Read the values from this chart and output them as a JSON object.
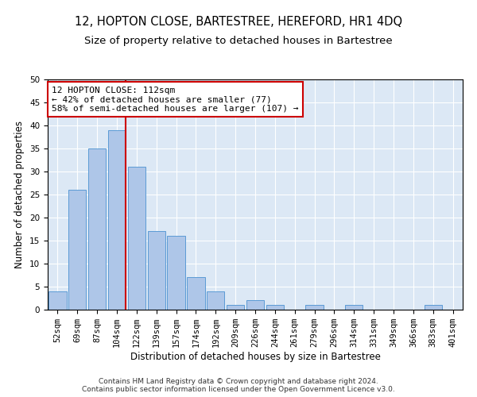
{
  "title": "12, HOPTON CLOSE, BARTESTREE, HEREFORD, HR1 4DQ",
  "subtitle": "Size of property relative to detached houses in Bartestree",
  "xlabel": "Distribution of detached houses by size in Bartestree",
  "ylabel": "Number of detached properties",
  "bar_labels": [
    "52sqm",
    "69sqm",
    "87sqm",
    "104sqm",
    "122sqm",
    "139sqm",
    "157sqm",
    "174sqm",
    "192sqm",
    "209sqm",
    "226sqm",
    "244sqm",
    "261sqm",
    "279sqm",
    "296sqm",
    "314sqm",
    "331sqm",
    "349sqm",
    "366sqm",
    "383sqm",
    "401sqm"
  ],
  "bar_values": [
    4,
    26,
    35,
    39,
    31,
    17,
    16,
    7,
    4,
    1,
    2,
    1,
    0,
    1,
    0,
    1,
    0,
    0,
    0,
    1,
    0
  ],
  "bar_color": "#aec6e8",
  "bar_edge_color": "#5b9bd5",
  "highlight_index": 3,
  "highlight_color": "#cc0000",
  "annotation_text": "12 HOPTON CLOSE: 112sqm\n← 42% of detached houses are smaller (77)\n58% of semi-detached houses are larger (107) →",
  "annotation_box_color": "#ffffff",
  "annotation_box_edge_color": "#cc0000",
  "ylim": [
    0,
    50
  ],
  "yticks": [
    0,
    5,
    10,
    15,
    20,
    25,
    30,
    35,
    40,
    45,
    50
  ],
  "background_color": "#dce8f5",
  "footer_line1": "Contains HM Land Registry data © Crown copyright and database right 2024.",
  "footer_line2": "Contains public sector information licensed under the Open Government Licence v3.0.",
  "title_fontsize": 10.5,
  "subtitle_fontsize": 9.5,
  "axis_label_fontsize": 8.5,
  "tick_fontsize": 7.5,
  "annotation_fontsize": 8,
  "footer_fontsize": 6.5
}
